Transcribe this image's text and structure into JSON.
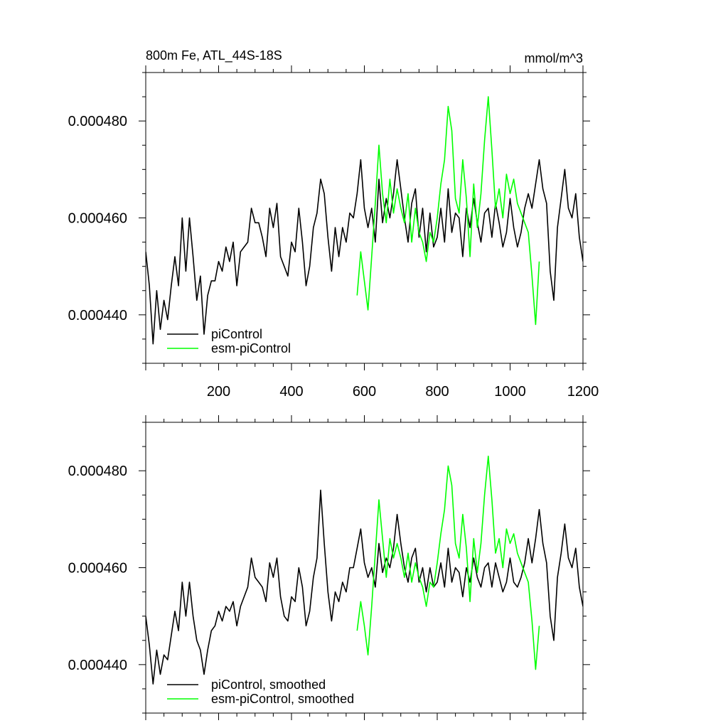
{
  "chart_data": [
    {
      "type": "line",
      "title": "800m Fe, ATL_44S-18S",
      "units": "mmol/m^3",
      "xlabel": "",
      "ylabel": "",
      "xlim": [
        0,
        1200
      ],
      "ylim": [
        0.00043,
        0.00049
      ],
      "x_ticks": [
        200,
        400,
        600,
        800,
        1000,
        1200
      ],
      "y_ticks": [
        "0.000440",
        "0.000460",
        "0.000480"
      ],
      "y_tick_values": [
        0.00044,
        0.00046,
        0.00048
      ],
      "legend": {
        "placement": "bottom-left"
      },
      "series": [
        {
          "name": "piControl",
          "color": "#000000",
          "x": [
            0,
            10,
            20,
            30,
            40,
            50,
            60,
            70,
            80,
            90,
            100,
            110,
            120,
            130,
            140,
            150,
            160,
            170,
            180,
            190,
            200,
            210,
            220,
            230,
            240,
            250,
            260,
            270,
            280,
            290,
            300,
            310,
            320,
            330,
            340,
            350,
            360,
            370,
            380,
            390,
            400,
            410,
            420,
            430,
            440,
            450,
            460,
            470,
            480,
            490,
            500,
            510,
            520,
            530,
            540,
            550,
            560,
            570,
            580,
            590,
            600,
            610,
            620,
            630,
            640,
            650,
            660,
            670,
            680,
            690,
            700,
            710,
            720,
            730,
            740,
            750,
            760,
            770,
            780,
            790,
            800,
            810,
            820,
            830,
            840,
            850,
            860,
            870,
            880,
            890,
            900,
            910,
            920,
            930,
            940,
            950,
            960,
            970,
            980,
            990,
            1000,
            1010,
            1020,
            1030,
            1040,
            1050,
            1060,
            1070,
            1080,
            1090,
            1100,
            1110,
            1120,
            1130,
            1140,
            1150,
            1160,
            1170,
            1180,
            1190,
            1200
          ],
          "values": [
            0.000453,
            0.000446,
            0.000434,
            0.000445,
            0.000437,
            0.000443,
            0.000439,
            0.000446,
            0.000452,
            0.000446,
            0.00046,
            0.000449,
            0.00046,
            0.000452,
            0.000443,
            0.000448,
            0.000436,
            0.000444,
            0.000447,
            0.000447,
            0.000451,
            0.000449,
            0.000454,
            0.000451,
            0.000455,
            0.000446,
            0.000453,
            0.000454,
            0.000455,
            0.000462,
            0.000459,
            0.000459,
            0.000456,
            0.000452,
            0.000462,
            0.000458,
            0.000463,
            0.000452,
            0.00045,
            0.000448,
            0.000455,
            0.000453,
            0.000462,
            0.000455,
            0.000446,
            0.00045,
            0.000458,
            0.000461,
            0.000468,
            0.000465,
            0.000456,
            0.000449,
            0.000458,
            0.000452,
            0.000458,
            0.000455,
            0.000461,
            0.00046,
            0.000465,
            0.000472,
            0.000462,
            0.000458,
            0.000462,
            0.000455,
            0.000468,
            0.000459,
            0.000464,
            0.00046,
            0.000465,
            0.000472,
            0.000466,
            0.00046,
            0.000455,
            0.000463,
            0.000466,
            0.000456,
            0.000462,
            0.000453,
            0.000461,
            0.000454,
            0.000456,
            0.000462,
            0.000455,
            0.000466,
            0.000457,
            0.000461,
            0.00046,
            0.000452,
            0.000462,
            0.000458,
            0.000464,
            0.000459,
            0.000455,
            0.000461,
            0.000462,
            0.000456,
            0.000463,
            0.000459,
            0.000454,
            0.000457,
            0.000464,
            0.000458,
            0.000454,
            0.000457,
            0.000462,
            0.000465,
            0.000462,
            0.000467,
            0.000472,
            0.000466,
            0.000463,
            0.000449,
            0.000443,
            0.000458,
            0.000464,
            0.00047,
            0.000462,
            0.00046,
            0.000465,
            0.000456,
            0.000451
          ]
        },
        {
          "name": "esm-piControl",
          "color": "#00ff00",
          "x": [
            580,
            590,
            600,
            610,
            620,
            630,
            640,
            650,
            660,
            670,
            680,
            690,
            700,
            710,
            720,
            730,
            740,
            750,
            760,
            770,
            780,
            790,
            800,
            810,
            820,
            830,
            840,
            850,
            860,
            870,
            880,
            890,
            900,
            910,
            920,
            930,
            940,
            950,
            960,
            970,
            980,
            990,
            1000,
            1010,
            1020,
            1030,
            1040,
            1050,
            1060,
            1070,
            1080
          ],
          "values": [
            0.000444,
            0.000453,
            0.000447,
            0.000441,
            0.000452,
            0.000463,
            0.000475,
            0.000465,
            0.000459,
            0.000468,
            0.000461,
            0.000466,
            0.000462,
            0.000459,
            0.000465,
            0.000455,
            0.000462,
            0.000457,
            0.000455,
            0.000451,
            0.000457,
            0.000455,
            0.00046,
            0.000467,
            0.000472,
            0.000483,
            0.000478,
            0.000464,
            0.000461,
            0.000472,
            0.000464,
            0.000452,
            0.000467,
            0.000458,
            0.000465,
            0.000476,
            0.000485,
            0.000474,
            0.000462,
            0.000466,
            0.00046,
            0.000469,
            0.000465,
            0.000468,
            0.000463,
            0.000461,
            0.000459,
            0.000457,
            0.000448,
            0.000438,
            0.000451
          ]
        }
      ]
    },
    {
      "type": "line",
      "title": "",
      "xlabel": "",
      "ylabel": "",
      "xlim": [
        0,
        1200
      ],
      "ylim": [
        0.00043,
        0.00049
      ],
      "y_ticks": [
        "0.000440",
        "0.000460",
        "0.000480"
      ],
      "y_tick_values": [
        0.00044,
        0.00046,
        0.00048
      ],
      "legend": {
        "placement": "bottom-left"
      },
      "series": [
        {
          "name": "piControl, smoothed",
          "color": "#000000",
          "x": [
            0,
            10,
            20,
            30,
            40,
            50,
            60,
            70,
            80,
            90,
            100,
            110,
            120,
            130,
            140,
            150,
            160,
            170,
            180,
            190,
            200,
            210,
            220,
            230,
            240,
            250,
            260,
            270,
            280,
            290,
            300,
            310,
            320,
            330,
            340,
            350,
            360,
            370,
            380,
            390,
            400,
            410,
            420,
            430,
            440,
            450,
            460,
            470,
            480,
            490,
            500,
            510,
            520,
            530,
            540,
            550,
            560,
            570,
            580,
            590,
            600,
            610,
            620,
            630,
            640,
            650,
            660,
            670,
            680,
            690,
            700,
            710,
            720,
            730,
            740,
            750,
            760,
            770,
            780,
            790,
            800,
            810,
            820,
            830,
            840,
            850,
            860,
            870,
            880,
            890,
            900,
            910,
            920,
            930,
            940,
            950,
            960,
            970,
            980,
            990,
            1000,
            1010,
            1020,
            1030,
            1040,
            1050,
            1060,
            1070,
            1080,
            1090,
            1100,
            1110,
            1120,
            1130,
            1140,
            1150,
            1160,
            1170,
            1180,
            1190,
            1200
          ],
          "values": [
            0.00045,
            0.000444,
            0.000436,
            0.000443,
            0.000438,
            0.000442,
            0.000441,
            0.000446,
            0.000451,
            0.000447,
            0.000457,
            0.00045,
            0.000457,
            0.00045,
            0.000445,
            0.000443,
            0.000438,
            0.000443,
            0.000447,
            0.000448,
            0.000451,
            0.000449,
            0.000452,
            0.000451,
            0.000453,
            0.000448,
            0.000452,
            0.000454,
            0.000456,
            0.000462,
            0.000458,
            0.000457,
            0.000456,
            0.000453,
            0.000461,
            0.000458,
            0.000462,
            0.000454,
            0.00045,
            0.000449,
            0.000454,
            0.000453,
            0.00046,
            0.000456,
            0.000448,
            0.000451,
            0.000458,
            0.000462,
            0.000476,
            0.000465,
            0.000455,
            0.000449,
            0.000455,
            0.000453,
            0.000457,
            0.000455,
            0.00046,
            0.00046,
            0.000464,
            0.000468,
            0.000461,
            0.000458,
            0.00046,
            0.000456,
            0.000465,
            0.000459,
            0.000462,
            0.00046,
            0.000464,
            0.000471,
            0.000465,
            0.00046,
            0.000457,
            0.000462,
            0.000464,
            0.000457,
            0.00046,
            0.000455,
            0.00046,
            0.000456,
            0.000457,
            0.000461,
            0.000456,
            0.000464,
            0.000457,
            0.00046,
            0.000459,
            0.000454,
            0.00046,
            0.000457,
            0.000462,
            0.000458,
            0.000456,
            0.00046,
            0.000461,
            0.000456,
            0.000461,
            0.000458,
            0.000455,
            0.000457,
            0.000462,
            0.000457,
            0.000456,
            0.000458,
            0.000461,
            0.000466,
            0.000461,
            0.000466,
            0.000472,
            0.000465,
            0.000461,
            0.00045,
            0.000445,
            0.000458,
            0.000463,
            0.000469,
            0.000462,
            0.00046,
            0.000464,
            0.000456,
            0.000452
          ]
        },
        {
          "name": "esm-piControl, smoothed",
          "color": "#00ff00",
          "x": [
            580,
            590,
            600,
            610,
            620,
            630,
            640,
            650,
            660,
            670,
            680,
            690,
            700,
            710,
            720,
            730,
            740,
            750,
            760,
            770,
            780,
            790,
            800,
            810,
            820,
            830,
            840,
            850,
            860,
            870,
            880,
            890,
            900,
            910,
            920,
            930,
            940,
            950,
            960,
            970,
            980,
            990,
            1000,
            1010,
            1020,
            1030,
            1040,
            1050,
            1060,
            1070,
            1080
          ],
          "values": [
            0.000447,
            0.000453,
            0.000448,
            0.000442,
            0.000452,
            0.000463,
            0.000474,
            0.000466,
            0.000458,
            0.000466,
            0.000462,
            0.000465,
            0.000462,
            0.000458,
            0.000463,
            0.000457,
            0.000461,
            0.000458,
            0.000456,
            0.000452,
            0.000457,
            0.000456,
            0.000461,
            0.000467,
            0.000472,
            0.000481,
            0.000477,
            0.000465,
            0.000462,
            0.000471,
            0.000464,
            0.000453,
            0.000466,
            0.000459,
            0.000465,
            0.000475,
            0.000483,
            0.000474,
            0.000463,
            0.000466,
            0.00046,
            0.000468,
            0.000465,
            0.000467,
            0.000463,
            0.000461,
            0.000459,
            0.000457,
            0.000449,
            0.000439,
            0.000448
          ]
        }
      ]
    }
  ]
}
